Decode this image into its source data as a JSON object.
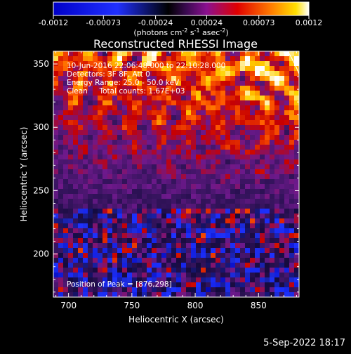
{
  "colorbar": {
    "ticks": [
      "-0.0012",
      "-0.00073",
      "-0.00024",
      "0.00024",
      "0.00073",
      "0.0012"
    ],
    "tick_values": [
      -0.0012,
      -0.00073,
      -0.00024,
      0.00024,
      0.00073,
      0.0012
    ],
    "units_line": "(photons cm",
    "units_exp1": "-2",
    "units_s": " s",
    "units_exp2": "-1",
    "units_asec": " asec",
    "units_exp3": "-2",
    "units_close": ")"
  },
  "annotations": {
    "time_range": "10-Jun-2016 22:06:48.000 to 22:10:28.000",
    "detectors": "Detectors: 3F 8F, Att 0",
    "energy": "Energy Range: 25.0 - 50.0 keV",
    "clean": "Clean     Total counts: 1.67E+03",
    "peak": "Position of Peak = [876,298]"
  },
  "footer_date": "5-Sep-2022 18:17",
  "chart_data": {
    "type": "heatmap",
    "title": "Reconstructed RHESSI Image",
    "xlabel": "Heliocentric X (arcsec)",
    "ylabel": "Heliocentric Y (arcsec)",
    "xlim": [
      688,
      882
    ],
    "ylim": [
      166,
      360
    ],
    "xticks": [
      700,
      750,
      800,
      850
    ],
    "yticks": [
      200,
      250,
      300,
      350
    ],
    "xtick_labels": [
      "700",
      "750",
      "800",
      "850"
    ],
    "ytick_labels": [
      "200",
      "250",
      "300",
      "350"
    ],
    "colorbar_range": [
      -0.0012,
      0.0012
    ],
    "peak_position": [
      876,
      298
    ],
    "colormap": [
      "#0000a0",
      "#0040ff",
      "#000000",
      "#6a1aa0",
      "#cc0000",
      "#ff6a00",
      "#ffe000",
      "#ffffff"
    ]
  }
}
